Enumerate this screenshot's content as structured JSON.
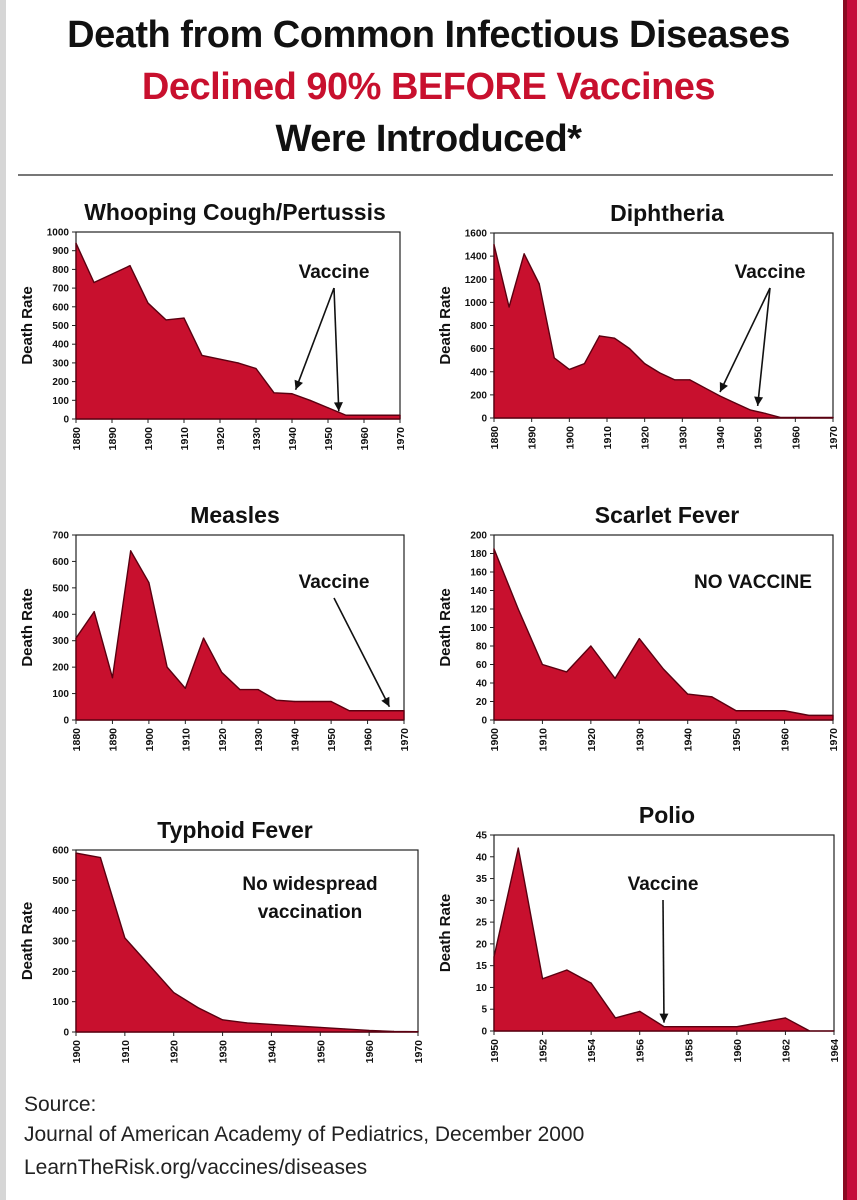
{
  "header": {
    "line1": "Death from Common Infectious Diseases",
    "line2": "Declined 90% BEFORE Vaccines",
    "line3": "Were Introduced*"
  },
  "colors": {
    "fill": "#c8102e",
    "accent": "#c8102e",
    "text": "#111111"
  },
  "chart_data": [
    {
      "type": "area",
      "title": "Whooping Cough/Pertussis",
      "ylabel": "Death Rate",
      "x": [
        1880,
        1885,
        1890,
        1895,
        1900,
        1905,
        1910,
        1915,
        1920,
        1925,
        1930,
        1935,
        1940,
        1945,
        1950,
        1955,
        1960,
        1965,
        1970
      ],
      "values": [
        940,
        730,
        775,
        820,
        620,
        530,
        540,
        340,
        320,
        300,
        270,
        140,
        135,
        100,
        60,
        20,
        20,
        20,
        20
      ],
      "ylim": [
        0,
        1000
      ],
      "yticks": [
        0,
        100,
        200,
        300,
        400,
        500,
        600,
        700,
        800,
        900,
        1000
      ],
      "xticks": [
        1880,
        1890,
        1900,
        1910,
        1920,
        1930,
        1940,
        1950,
        1960,
        1970
      ],
      "annotation": "Vaccine",
      "arrow_targets": [
        1941,
        1953
      ]
    },
    {
      "type": "area",
      "title": "Diphtheria",
      "ylabel": "Death Rate",
      "x": [
        1880,
        1884,
        1888,
        1892,
        1896,
        1900,
        1904,
        1908,
        1912,
        1916,
        1920,
        1924,
        1928,
        1932,
        1936,
        1940,
        1944,
        1948,
        1952,
        1956,
        1960,
        1964,
        1970
      ],
      "values": [
        1500,
        960,
        1420,
        1160,
        520,
        420,
        470,
        710,
        690,
        600,
        470,
        390,
        330,
        330,
        260,
        190,
        130,
        70,
        40,
        5,
        5,
        5,
        5
      ],
      "ylim": [
        0,
        1600
      ],
      "yticks": [
        0,
        200,
        400,
        600,
        800,
        1000,
        1200,
        1400,
        1600
      ],
      "xticks": [
        1880,
        1890,
        1900,
        1910,
        1920,
        1930,
        1940,
        1950,
        1960,
        1970
      ],
      "annotation": "Vaccine",
      "arrow_targets": [
        1940,
        1950
      ]
    },
    {
      "type": "area",
      "title": "Measles",
      "ylabel": "Death Rate",
      "x": [
        1880,
        1885,
        1890,
        1895,
        1900,
        1905,
        1910,
        1915,
        1920,
        1925,
        1930,
        1935,
        1940,
        1945,
        1950,
        1955,
        1960,
        1965,
        1970
      ],
      "values": [
        310,
        410,
        160,
        640,
        520,
        200,
        120,
        310,
        180,
        115,
        115,
        75,
        70,
        70,
        70,
        35,
        35,
        35,
        35
      ],
      "ylim": [
        0,
        700
      ],
      "yticks": [
        0,
        100,
        200,
        300,
        400,
        500,
        600,
        700
      ],
      "xticks": [
        1880,
        1890,
        1900,
        1910,
        1920,
        1930,
        1940,
        1950,
        1960,
        1970
      ],
      "annotation": "Vaccine",
      "arrow_targets": [
        1966
      ]
    },
    {
      "type": "area",
      "title": "Scarlet Fever",
      "ylabel": "Death Rate",
      "x": [
        1900,
        1905,
        1910,
        1915,
        1920,
        1925,
        1930,
        1935,
        1940,
        1945,
        1950,
        1955,
        1960,
        1965,
        1970
      ],
      "values": [
        185,
        120,
        60,
        52,
        80,
        45,
        88,
        55,
        28,
        25,
        10,
        10,
        10,
        5,
        5
      ],
      "ylim": [
        0,
        200
      ],
      "yticks": [
        0,
        20,
        40,
        60,
        80,
        100,
        120,
        140,
        160,
        180,
        200
      ],
      "xticks": [
        1900,
        1910,
        1920,
        1930,
        1940,
        1950,
        1960,
        1970
      ],
      "annotation": "NO VACCINE",
      "arrow_targets": []
    },
    {
      "type": "area",
      "title": "Typhoid Fever",
      "ylabel": "Death Rate",
      "x": [
        1900,
        1905,
        1910,
        1915,
        1920,
        1925,
        1930,
        1935,
        1940,
        1945,
        1950,
        1955,
        1960,
        1965,
        1970
      ],
      "values": [
        590,
        575,
        310,
        220,
        130,
        80,
        40,
        30,
        25,
        20,
        15,
        10,
        5,
        2,
        1
      ],
      "ylim": [
        0,
        600
      ],
      "yticks": [
        0,
        100,
        200,
        300,
        400,
        500,
        600
      ],
      "xticks": [
        1900,
        1910,
        1920,
        1930,
        1940,
        1950,
        1960,
        1970
      ],
      "annotation": "No widespread vaccination",
      "annotation_lines": [
        "No widespread",
        "vaccination"
      ],
      "arrow_targets": []
    },
    {
      "type": "area",
      "title": "Polio",
      "ylabel": "Death Rate",
      "x": [
        1950,
        1951,
        1952,
        1953,
        1954,
        1955,
        1956,
        1957,
        1958,
        1959,
        1960,
        1961,
        1962,
        1963,
        1964
      ],
      "values": [
        17,
        42,
        12,
        14,
        11,
        3,
        4.5,
        1,
        1,
        1,
        1,
        2,
        3,
        0,
        0
      ],
      "ylim": [
        0,
        45
      ],
      "yticks": [
        0,
        5,
        10,
        15,
        20,
        25,
        30,
        35,
        40,
        45
      ],
      "xticks": [
        1950,
        1952,
        1954,
        1956,
        1958,
        1960,
        1962,
        1964
      ],
      "annotation": "Vaccine",
      "arrow_targets": [
        1957
      ]
    }
  ],
  "source": {
    "label": "Source:",
    "line1": "Journal of American Academy of Pediatrics, December 2000",
    "line2": "LearnTheRisk.org/vaccines/diseases"
  }
}
